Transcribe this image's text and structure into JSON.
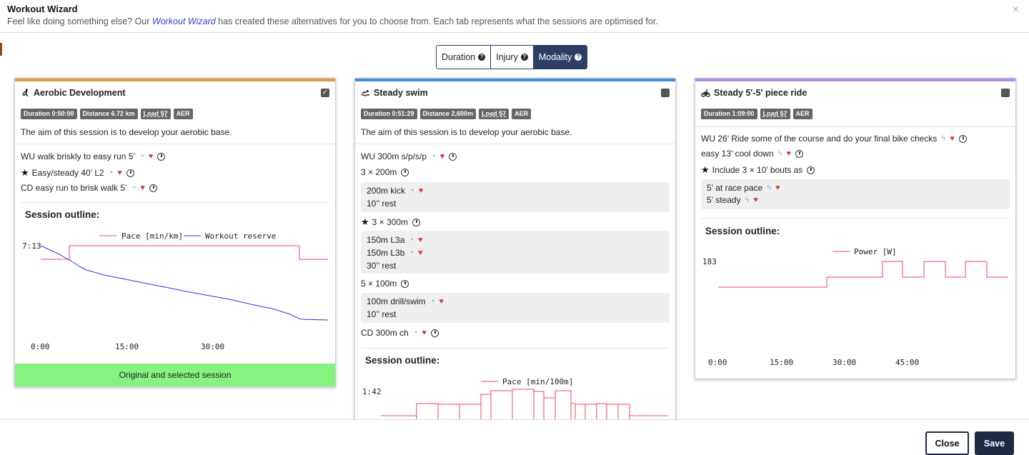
{
  "header": {
    "title": "Workout Wizard",
    "subtitle_pre": "Feel like doing something else? Our ",
    "subtitle_link": "Workout Wizard",
    "subtitle_post": " has created these alternatives for you to choose from. Each tab represents what the sessions are optimised for.",
    "close_icon": "×"
  },
  "tabs": [
    {
      "label": "Duration",
      "active": false
    },
    {
      "label": "Injury",
      "active": false
    },
    {
      "label": "Modality",
      "active": true
    }
  ],
  "cards": [
    {
      "title": "Aerobic Development",
      "icon": "run-icon",
      "accent": "#e09a4a",
      "selected": true,
      "tags": {
        "duration": "Duration 0:50:00",
        "distance": "Distance 6.72 km",
        "load": "Load 57",
        "type": "AER"
      },
      "aim": "The aim of this session is to develop your aerobic base.",
      "steps": [
        "WU walk briskly to easy run 5’",
        "Easy/steady 40’ L2",
        "CD easy run to brisk walk 5’"
      ],
      "outline_title": "Session outline:",
      "chart": {
        "legend": [
          "Pace [min/km]",
          "Workout reserve"
        ],
        "ytick": "7:13",
        "xticks": [
          "0:00",
          "15:00",
          "30:00"
        ]
      },
      "footer": "Original and selected session"
    },
    {
      "title": "Steady swim",
      "icon": "swim-icon",
      "accent": "#3d8fdc",
      "selected": false,
      "tags": {
        "duration": "Duration 0:51:29",
        "distance": "Distance 2,600m",
        "load": "Load 57",
        "type": "AER"
      },
      "aim": "The aim of this session is to develop your aerobic base.",
      "steps": [
        "WU 300m s/p/s/p",
        "3 × 200m",
        "200m kick",
        "10’’ rest",
        "3 × 300m",
        "150m L3a",
        "150m L3b",
        "30’’ rest",
        "5 × 100m",
        "100m drill/swim",
        "10’’ rest",
        "CD 300m ch"
      ],
      "outline_title": "Session outline:",
      "chart": {
        "legend": [
          "Pace [min/100m]"
        ],
        "ytick": "1:42"
      }
    },
    {
      "title": "Steady 5'-5' piece ride",
      "icon": "bike-icon",
      "accent": "#b48ee0",
      "selected": false,
      "tags": {
        "duration": "Duration 1:09:00",
        "load": "Load 57",
        "type": "AER"
      },
      "steps": [
        "WU 26’ Ride some of the course and do your final bike checks",
        "easy 13’ cool down",
        "Include 3 × 10’ bouts as",
        "5’ at race pace",
        "5’ steady"
      ],
      "outline_title": "Session outline:",
      "chart": {
        "legend": [
          "Power [W]"
        ],
        "ytick": "183",
        "xticks": [
          "0:00",
          "15:00",
          "30:00",
          "45:00"
        ]
      }
    }
  ],
  "chart_data": [
    {
      "type": "line",
      "title": "Session outline:",
      "series": [
        {
          "name": "Pace [min/km]",
          "x": [
            0,
            5,
            45,
            50
          ],
          "y": [
            "easy",
            "steady",
            "steady",
            "cool down"
          ]
        },
        {
          "name": "Workout reserve",
          "trend": "declining"
        }
      ],
      "ytick": "7:13",
      "xticks": [
        "0:00",
        "15:00",
        "30:00"
      ]
    },
    {
      "type": "line",
      "title": "Session outline:",
      "series": [
        {
          "name": "Pace [min/100m]"
        }
      ],
      "ytick": "1:42"
    },
    {
      "type": "line",
      "title": "Session outline:",
      "series": [
        {
          "name": "Power [W]"
        }
      ],
      "ytick": "183",
      "xticks": [
        "0:00",
        "15:00",
        "30:00",
        "45:00"
      ]
    }
  ],
  "footer": {
    "close": "Close",
    "save": "Save"
  }
}
